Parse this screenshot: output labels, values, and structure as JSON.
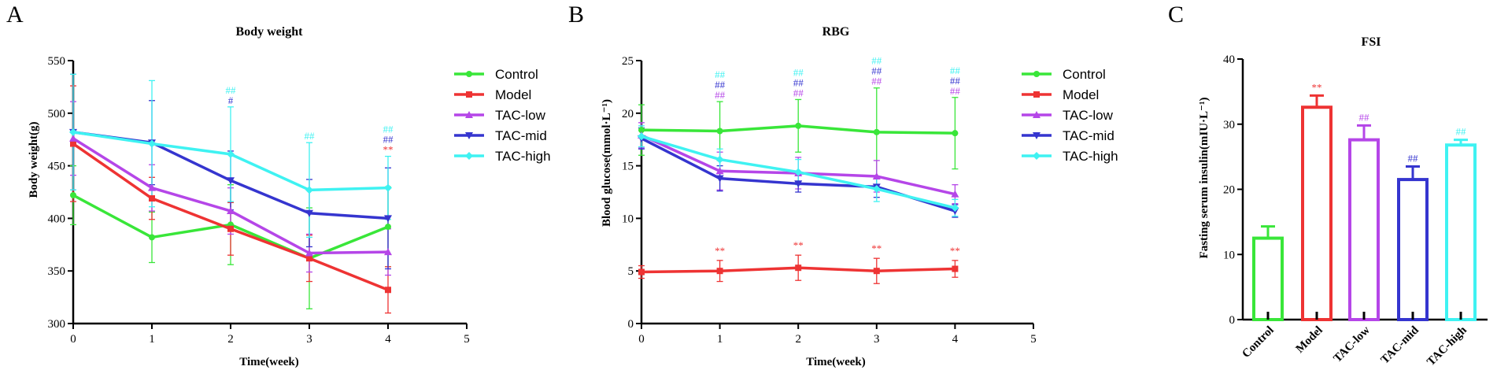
{
  "figure": {
    "panel_letters": [
      "A",
      "B",
      "C"
    ]
  },
  "colors": {
    "control": "#39e639",
    "model": "#ee3333",
    "tac_low": "#b546e8",
    "tac_mid": "#3535cf",
    "tac_high": "#3ff2f2",
    "axis": "#000000"
  },
  "chart_data": [
    {
      "type": "line",
      "title": "Body weight",
      "xlabel": "Time(week)",
      "ylabel": "Body weight(g)",
      "xlim": [
        0,
        5
      ],
      "ylim": [
        300,
        550
      ],
      "xticks": [
        0,
        1,
        2,
        3,
        4,
        5
      ],
      "yticks": [
        300,
        350,
        400,
        450,
        500,
        550
      ],
      "legend_position": "right",
      "x": [
        0,
        1,
        2,
        3,
        4
      ],
      "series": [
        {
          "name": "Control",
          "marker": "circle",
          "color": "#39e639",
          "values": [
            422,
            382,
            394,
            362,
            392
          ],
          "errors": [
            28,
            24,
            38,
            48,
            38
          ]
        },
        {
          "name": "Model",
          "marker": "square",
          "color": "#ee3333",
          "values": [
            471,
            419,
            390,
            362,
            332
          ],
          "errors": [
            55,
            20,
            25,
            22,
            22
          ]
        },
        {
          "name": "TAC-low",
          "marker": "triangle-up",
          "color": "#b546e8",
          "values": [
            476,
            429,
            407,
            367,
            368
          ],
          "errors": [
            35,
            22,
            22,
            18,
            22
          ]
        },
        {
          "name": "TAC-mid",
          "marker": "triangle-down",
          "color": "#3535cf",
          "values": [
            482,
            472,
            436,
            405,
            400
          ],
          "errors": [
            55,
            40,
            28,
            32,
            48
          ]
        },
        {
          "name": "TAC-high",
          "marker": "diamond",
          "color": "#3ff2f2",
          "values": [
            482,
            471,
            461,
            427,
            429
          ],
          "errors": [
            55,
            60,
            45,
            45,
            30
          ]
        }
      ],
      "annotations": [
        {
          "x": 2,
          "lines": [
            {
              "text": "##",
              "color": "#3ff2f2"
            },
            {
              "text": "#",
              "color": "#3535cf"
            }
          ]
        },
        {
          "x": 3,
          "lines": [
            {
              "text": "##",
              "color": "#3ff2f2"
            }
          ]
        },
        {
          "x": 4,
          "lines": [
            {
              "text": "##",
              "color": "#3ff2f2"
            },
            {
              "text": "##",
              "color": "#3535cf"
            },
            {
              "text": "**",
              "color": "#ee3333"
            }
          ]
        }
      ]
    },
    {
      "type": "line",
      "title": "RBG",
      "xlabel": "Time(week)",
      "ylabel": "Blood glucose(mmol·L⁻¹)",
      "xlim": [
        0,
        5
      ],
      "ylim": [
        0,
        25
      ],
      "xticks": [
        0,
        1,
        2,
        3,
        4,
        5
      ],
      "yticks": [
        0,
        5,
        10,
        15,
        20,
        25
      ],
      "legend_position": "right",
      "x": [
        0,
        1,
        2,
        3,
        4
      ],
      "series": [
        {
          "name": "Control",
          "marker": "circle",
          "color": "#39e639",
          "values": [
            18.4,
            18.3,
            18.8,
            18.2,
            18.1
          ],
          "errors": [
            2.4,
            2.8,
            2.5,
            4.2,
            3.4
          ]
        },
        {
          "name": "Model",
          "marker": "square",
          "color": "#ee3333",
          "values": [
            4.9,
            5.0,
            5.3,
            5.0,
            5.2
          ],
          "errors": [
            0.6,
            1.0,
            1.2,
            1.2,
            0.8
          ]
        },
        {
          "name": "TAC-low",
          "marker": "triangle-up",
          "color": "#b546e8",
          "values": [
            17.9,
            14.5,
            14.3,
            14.0,
            12.3
          ],
          "errors": [
            1.2,
            1.8,
            1.5,
            1.5,
            0.9
          ]
        },
        {
          "name": "TAC-mid",
          "marker": "triangle-down",
          "color": "#3535cf",
          "values": [
            17.6,
            13.8,
            13.3,
            13.0,
            10.7
          ],
          "errors": [
            1.0,
            1.2,
            0.8,
            1.0,
            0.6
          ]
        },
        {
          "name": "TAC-high",
          "marker": "diamond",
          "color": "#3ff2f2",
          "values": [
            17.8,
            15.6,
            14.4,
            12.8,
            11.0
          ],
          "errors": [
            1.0,
            1.0,
            1.2,
            1.2,
            0.8
          ]
        }
      ],
      "annotations": [
        {
          "x": 1,
          "lines": [
            {
              "text": "##",
              "color": "#3ff2f2"
            },
            {
              "text": "##",
              "color": "#3535cf"
            },
            {
              "text": "##",
              "color": "#b546e8"
            }
          ]
        },
        {
          "x": 2,
          "lines": [
            {
              "text": "##",
              "color": "#3ff2f2"
            },
            {
              "text": "##",
              "color": "#3535cf"
            },
            {
              "text": "##",
              "color": "#b546e8"
            }
          ]
        },
        {
          "x": 3,
          "lines": [
            {
              "text": "##",
              "color": "#3ff2f2"
            },
            {
              "text": "##",
              "color": "#3535cf"
            },
            {
              "text": "##",
              "color": "#b546e8"
            }
          ]
        },
        {
          "x": 4,
          "lines": [
            {
              "text": "##",
              "color": "#3ff2f2"
            },
            {
              "text": "##",
              "color": "#3535cf"
            },
            {
              "text": "##",
              "color": "#b546e8"
            }
          ]
        },
        {
          "x": 1,
          "lines": [
            {
              "text": "**",
              "color": "#ee3333"
            }
          ],
          "near_series": "Model"
        },
        {
          "x": 2,
          "lines": [
            {
              "text": "**",
              "color": "#ee3333"
            }
          ],
          "near_series": "Model"
        },
        {
          "x": 3,
          "lines": [
            {
              "text": "**",
              "color": "#ee3333"
            }
          ],
          "near_series": "Model"
        },
        {
          "x": 4,
          "lines": [
            {
              "text": "**",
              "color": "#ee3333"
            }
          ],
          "near_series": "Model"
        }
      ]
    },
    {
      "type": "bar",
      "title": "FSI",
      "xlabel": "",
      "ylabel": "Fasting serum insulin(mIU·L⁻¹)",
      "ylim": [
        0,
        40
      ],
      "yticks": [
        0,
        10,
        20,
        30,
        40
      ],
      "categories": [
        "Control",
        "Model",
        "TAC-low",
        "TAC-mid",
        "TAC-high"
      ],
      "values": [
        12.5,
        32.6,
        27.6,
        21.5,
        26.8
      ],
      "errors": [
        1.8,
        1.8,
        2.2,
        2.0,
        0.8
      ],
      "colors": [
        "#39e639",
        "#ee3333",
        "#b546e8",
        "#3535cf",
        "#3ff2f2"
      ],
      "annotations": [
        "",
        "**",
        "##",
        "##",
        "##"
      ]
    }
  ]
}
